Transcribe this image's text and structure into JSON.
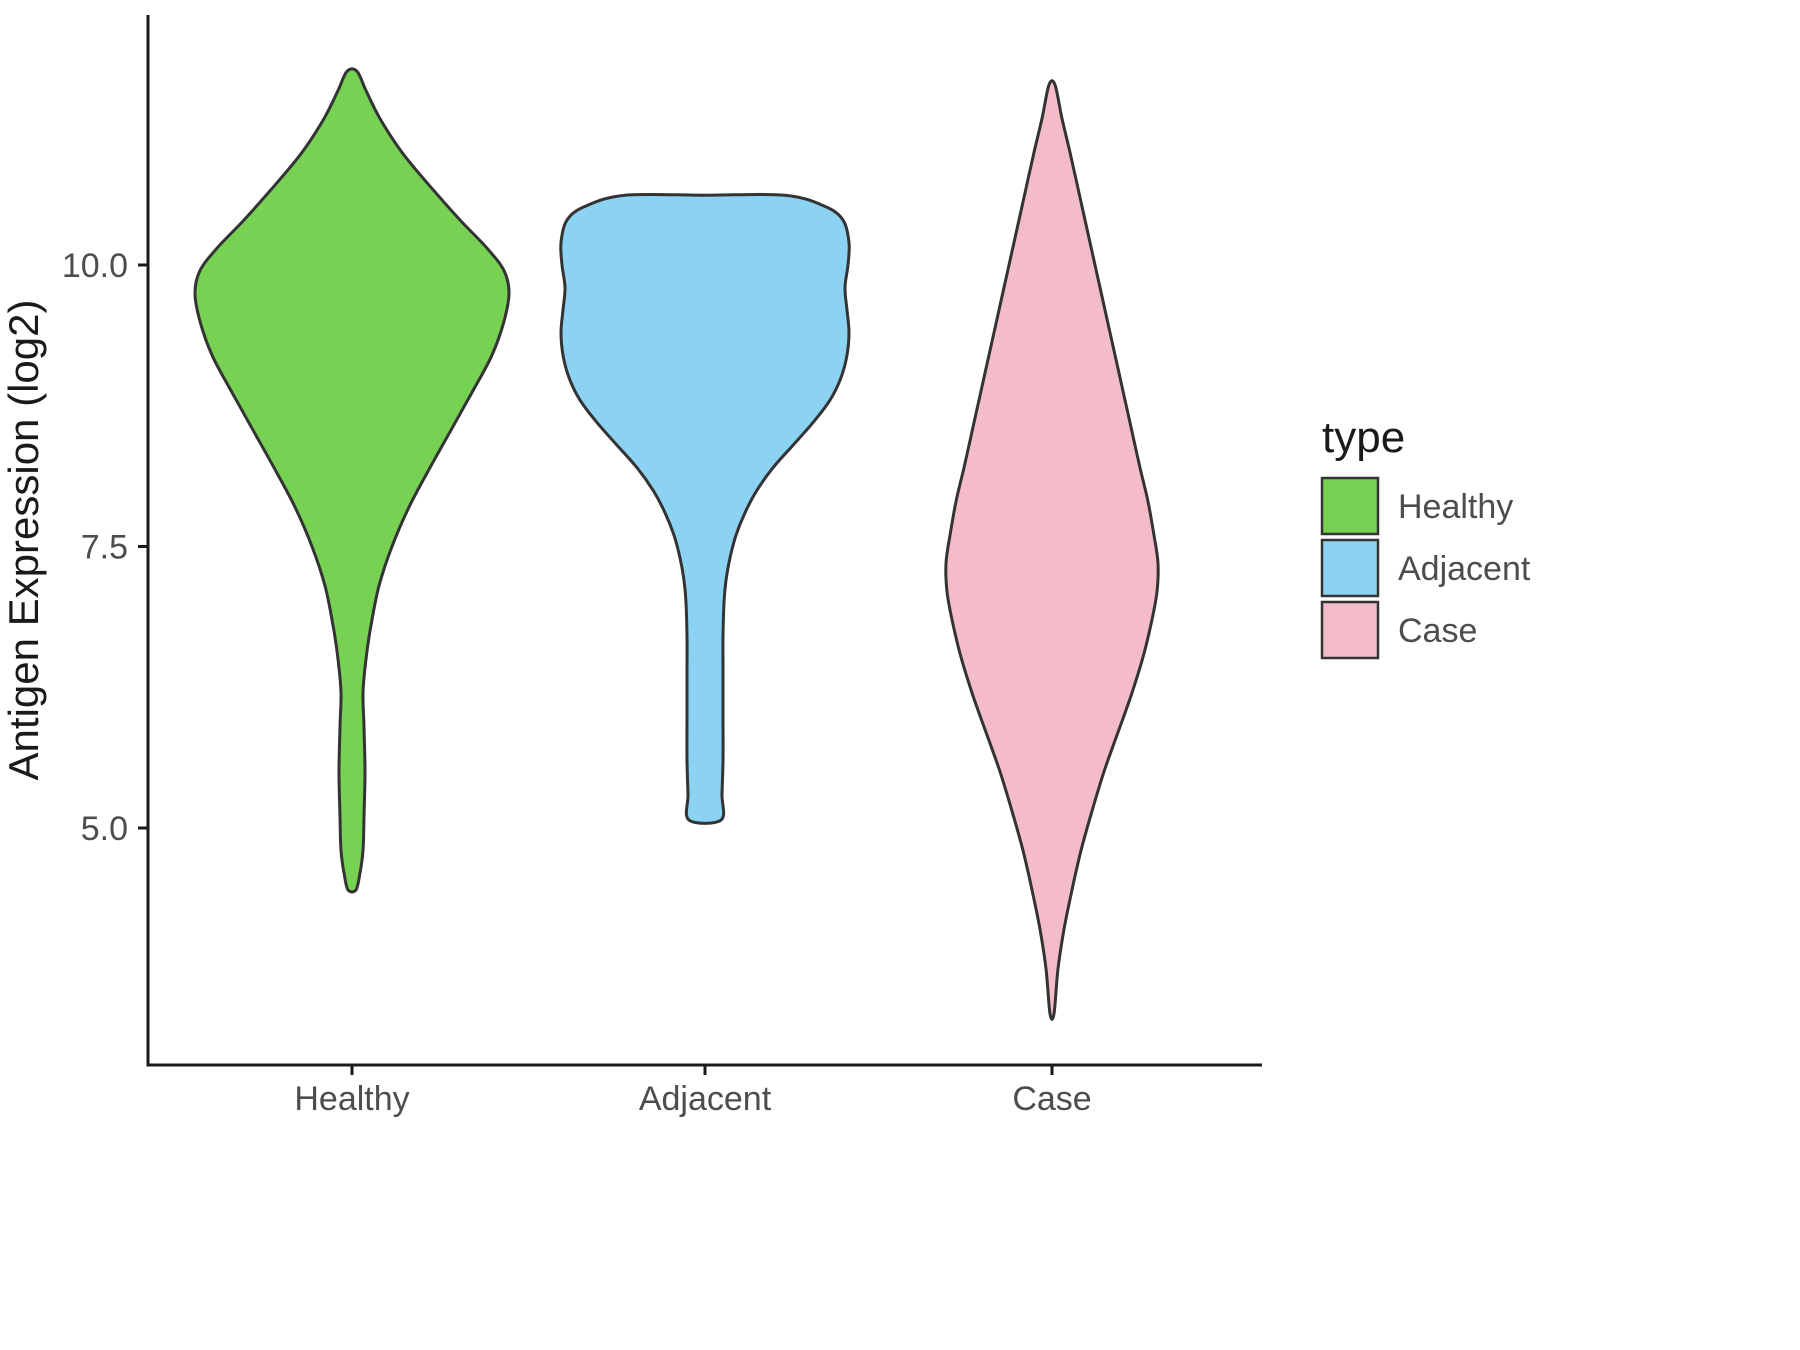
{
  "chart_data": {
    "type": "violin",
    "title": "",
    "ylabel": "Antigen Expression (log2)",
    "xlabel": "",
    "axis": {
      "y_ticks": [
        {
          "label": "10.0",
          "value": 10.0
        },
        {
          "label": "7.5",
          "value": 7.5
        },
        {
          "label": "5.0",
          "value": 5.0
        }
      ],
      "y_range_shown": [
        2.9,
        12.2
      ],
      "categories": [
        "Healthy",
        "Adjacent",
        "Case"
      ]
    },
    "legend": {
      "title": "type",
      "position": "right",
      "items": [
        {
          "label": "Healthy",
          "color": "#77D153"
        },
        {
          "label": "Adjacent",
          "color": "#8CD2F2"
        },
        {
          "label": "Case",
          "color": "#F4BCC8"
        }
      ]
    },
    "violins": [
      {
        "category": "Healthy",
        "color": "#77D153",
        "outline": "#333333",
        "value_range": [
          4.45,
          11.72
        ],
        "peak_value": 9.8,
        "profile": [
          [
            11.72,
            5
          ],
          [
            11.55,
            14
          ],
          [
            11.3,
            28
          ],
          [
            11.0,
            50
          ],
          [
            10.7,
            78
          ],
          [
            10.4,
            108
          ],
          [
            10.15,
            135
          ],
          [
            9.95,
            152
          ],
          [
            9.75,
            157
          ],
          [
            9.5,
            152
          ],
          [
            9.2,
            140
          ],
          [
            8.9,
            122
          ],
          [
            8.55,
            100
          ],
          [
            8.2,
            78
          ],
          [
            7.85,
            57
          ],
          [
            7.5,
            40
          ],
          [
            7.15,
            27
          ],
          [
            6.8,
            19
          ],
          [
            6.5,
            14
          ],
          [
            6.2,
            11
          ],
          [
            5.9,
            12
          ],
          [
            5.5,
            13
          ],
          [
            5.1,
            12
          ],
          [
            4.8,
            11
          ],
          [
            4.6,
            8
          ],
          [
            4.45,
            4
          ]
        ]
      },
      {
        "category": "Adjacent",
        "color": "#8CD2F2",
        "outline": "#333333",
        "value_range": [
          5.07,
          10.62
        ],
        "peak_value": 9.9,
        "flat_top": true,
        "flat_bottom": true,
        "profile": [
          [
            10.62,
            80
          ],
          [
            10.52,
            120
          ],
          [
            10.4,
            138
          ],
          [
            10.2,
            144
          ],
          [
            10.0,
            143
          ],
          [
            9.8,
            140
          ],
          [
            9.6,
            142
          ],
          [
            9.4,
            144
          ],
          [
            9.2,
            142
          ],
          [
            9.0,
            136
          ],
          [
            8.8,
            125
          ],
          [
            8.6,
            108
          ],
          [
            8.4,
            88
          ],
          [
            8.2,
            68
          ],
          [
            8.0,
            52
          ],
          [
            7.8,
            40
          ],
          [
            7.6,
            31
          ],
          [
            7.4,
            25
          ],
          [
            7.2,
            21
          ],
          [
            7.0,
            19
          ],
          [
            6.7,
            18
          ],
          [
            6.4,
            18
          ],
          [
            6.0,
            18
          ],
          [
            5.6,
            18
          ],
          [
            5.3,
            17
          ],
          [
            5.07,
            16
          ]
        ]
      },
      {
        "category": "Case",
        "color": "#F4BCC8",
        "outline": "#333333",
        "value_range": [
          3.35,
          11.6
        ],
        "peak_value": 7.35,
        "profile": [
          [
            11.6,
            3
          ],
          [
            11.3,
            10
          ],
          [
            11.0,
            18
          ],
          [
            10.6,
            28
          ],
          [
            10.2,
            38
          ],
          [
            9.8,
            48
          ],
          [
            9.4,
            58
          ],
          [
            9.0,
            68
          ],
          [
            8.6,
            78
          ],
          [
            8.2,
            88
          ],
          [
            7.9,
            96
          ],
          [
            7.6,
            102
          ],
          [
            7.35,
            106
          ],
          [
            7.1,
            105
          ],
          [
            6.85,
            100
          ],
          [
            6.55,
            92
          ],
          [
            6.2,
            80
          ],
          [
            5.85,
            66
          ],
          [
            5.5,
            52
          ],
          [
            5.15,
            40
          ],
          [
            4.8,
            29
          ],
          [
            4.45,
            20
          ],
          [
            4.1,
            12
          ],
          [
            3.75,
            6
          ],
          [
            3.35,
            2
          ]
        ]
      }
    ]
  },
  "colors": {
    "axis": "#1a1a1a",
    "tick_text": "#4d4d4d",
    "outline": "#333333",
    "background": "#ffffff"
  }
}
